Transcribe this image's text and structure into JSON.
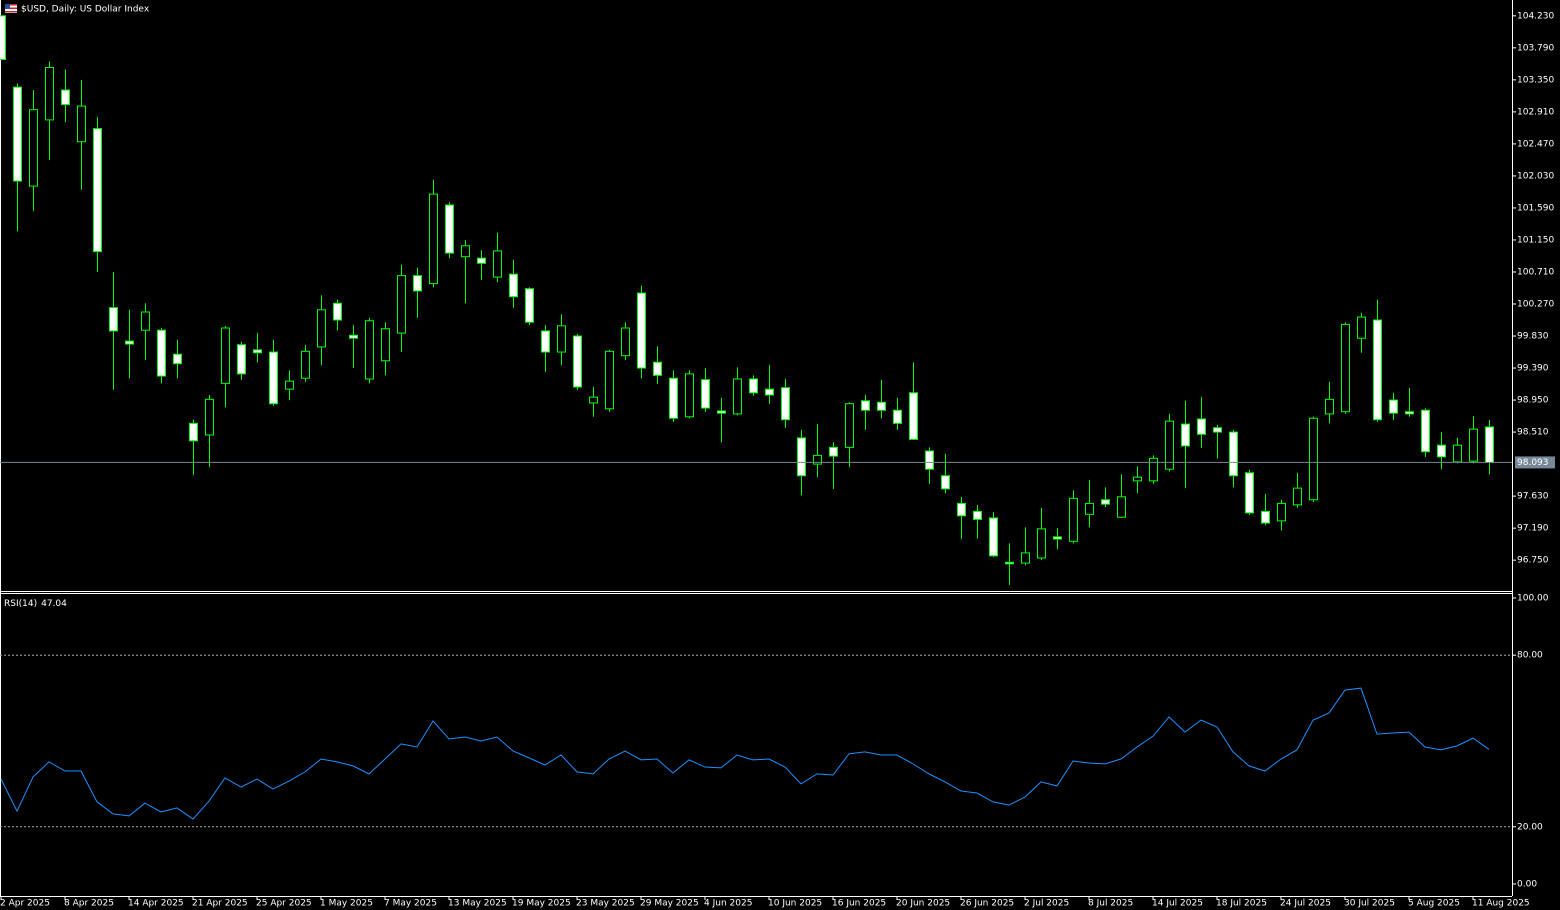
{
  "chart_data": [
    {
      "type": "candlestick",
      "title": "$USD, Daily:  US Dollar Index",
      "categories": [
        "2 Apr 2025",
        null,
        null,
        null,
        "8 Apr 2025",
        null,
        null,
        null,
        "14 Apr 2025",
        null,
        null,
        null,
        "21 Apr 2025",
        null,
        null,
        null,
        "25 Apr 2025",
        null,
        null,
        null,
        "1 May 2025",
        null,
        null,
        null,
        "7 May 2025",
        null,
        null,
        null,
        "13 May 2025",
        null,
        null,
        null,
        "19 May 2025",
        null,
        null,
        null,
        "23 May 2025",
        null,
        null,
        null,
        "29 May 2025",
        null,
        null,
        null,
        "4 Jun 2025",
        null,
        null,
        null,
        "10 Jun 2025",
        null,
        null,
        null,
        "16 Jun 2025",
        null,
        null,
        null,
        "20 Jun 2025",
        null,
        null,
        null,
        "26 Jun 2025",
        null,
        null,
        null,
        "2 Jul 2025",
        null,
        null,
        null,
        "8 Jul 2025",
        null,
        null,
        null,
        "14 Jul 2025",
        null,
        null,
        null,
        "18 Jul 2025",
        null,
        null,
        null,
        "24 Jul 2025",
        null,
        null,
        null,
        "30 Jul 2025",
        null,
        null,
        null,
        "5 Aug 2025",
        null,
        null,
        null,
        "11 Aug 2025",
        null
      ],
      "open": [
        104.23,
        103.25,
        101.89,
        102.8,
        103.21,
        102.5,
        102.68,
        100.22,
        99.76,
        99.91,
        99.91,
        99.58,
        98.63,
        98.47,
        99.18,
        99.71,
        99.64,
        99.61,
        99.1,
        99.25,
        99.68,
        100.28,
        99.84,
        99.24,
        99.49,
        99.87,
        100.66,
        100.55,
        101.63,
        100.92,
        100.9,
        100.64,
        100.68,
        100.48,
        99.9,
        99.61,
        99.83,
        98.91,
        98.83,
        99.56,
        100.42,
        99.47,
        99.25,
        98.72,
        99.23,
        98.8,
        98.76,
        99.24,
        99.1,
        99.12,
        98.43,
        98.07,
        98.3,
        98.3,
        98.94,
        98.92,
        98.81,
        99.05,
        98.25,
        97.91,
        97.53,
        97.42,
        97.33,
        96.72,
        96.71,
        96.78,
        97.07,
        97.01,
        97.38,
        97.58,
        97.34,
        97.84,
        97.84,
        98.0,
        98.62,
        98.69,
        98.57,
        98.51,
        97.95,
        97.42,
        97.29,
        97.51,
        97.58,
        98.76,
        98.79,
        99.8,
        100.05,
        98.95,
        98.79,
        98.81,
        98.33,
        98.1,
        98.11,
        98.58
      ],
      "high": [
        104.23,
        103.3,
        103.21,
        103.6,
        103.49,
        103.35,
        102.84,
        100.71,
        100.19,
        100.28,
        99.94,
        99.78,
        98.68,
        99.02,
        99.97,
        99.75,
        99.87,
        99.78,
        99.36,
        99.71,
        100.39,
        100.33,
        99.98,
        100.08,
        100.02,
        100.81,
        100.77,
        101.98,
        101.67,
        101.15,
        101.01,
        101.25,
        100.88,
        100.5,
        99.98,
        100.13,
        99.86,
        99.13,
        99.64,
        100.02,
        100.52,
        99.69,
        99.36,
        99.36,
        99.39,
        98.98,
        99.4,
        99.29,
        99.43,
        99.24,
        98.54,
        98.62,
        98.37,
        98.92,
        99.02,
        99.23,
        98.98,
        99.47,
        98.3,
        98.21,
        97.62,
        97.51,
        97.41,
        96.98,
        97.2,
        97.47,
        97.19,
        97.71,
        97.85,
        97.75,
        97.93,
        98.04,
        98.19,
        98.76,
        98.94,
        98.99,
        98.61,
        98.54,
        97.99,
        97.66,
        97.58,
        97.95,
        98.72,
        99.2,
        100.02,
        100.15,
        100.33,
        99.05,
        99.12,
        98.84,
        98.51,
        98.43,
        98.73,
        98.68
      ],
      "low": [
        103.63,
        101.27,
        101.55,
        102.25,
        102.77,
        101.84,
        100.71,
        99.09,
        99.25,
        99.5,
        99.18,
        99.25,
        97.92,
        98.03,
        98.85,
        99.23,
        99.47,
        98.87,
        98.95,
        99.2,
        99.43,
        99.91,
        99.39,
        99.18,
        99.29,
        99.61,
        100.08,
        100.5,
        100.9,
        100.28,
        100.6,
        100.57,
        100.22,
        99.98,
        99.34,
        99.43,
        99.09,
        98.72,
        98.79,
        99.5,
        99.25,
        99.17,
        98.65,
        98.7,
        98.79,
        98.37,
        98.74,
        99.01,
        98.9,
        98.57,
        97.64,
        97.89,
        97.73,
        98.03,
        98.54,
        98.7,
        98.54,
        98.4,
        97.8,
        97.67,
        97.04,
        97.05,
        96.79,
        96.41,
        96.68,
        96.75,
        96.9,
        96.98,
        97.2,
        97.48,
        97.33,
        97.67,
        97.8,
        97.97,
        97.74,
        98.29,
        98.15,
        97.75,
        97.37,
        97.23,
        97.16,
        97.47,
        97.55,
        98.63,
        98.76,
        99.6,
        98.65,
        98.68,
        98.72,
        98.17,
        98.0,
        98.08,
        98.08,
        97.93
      ],
      "close": [
        103.63,
        101.96,
        102.94,
        103.52,
        103.01,
        102.99,
        100.99,
        99.9,
        99.72,
        100.16,
        99.28,
        99.45,
        98.39,
        98.96,
        99.94,
        99.31,
        99.6,
        98.9,
        99.21,
        99.62,
        100.19,
        100.05,
        99.8,
        100.04,
        99.93,
        100.66,
        100.45,
        101.78,
        100.97,
        101.07,
        100.83,
        101.0,
        100.37,
        100.02,
        99.61,
        99.97,
        99.13,
        98.99,
        99.62,
        99.94,
        99.39,
        99.29,
        98.7,
        99.31,
        98.84,
        98.77,
        99.24,
        99.05,
        99.02,
        98.68,
        97.91,
        98.19,
        98.18,
        98.9,
        98.81,
        98.81,
        98.63,
        98.41,
        98.0,
        97.73,
        97.36,
        97.31,
        96.81,
        96.7,
        96.85,
        97.18,
        97.04,
        97.6,
        97.53,
        97.52,
        97.62,
        97.89,
        98.15,
        98.66,
        98.32,
        98.48,
        98.51,
        97.91,
        97.4,
        97.26,
        97.53,
        97.74,
        98.7,
        98.96,
        99.99,
        100.09,
        98.68,
        98.77,
        98.76,
        98.24,
        98.17,
        98.33,
        98.55,
        98.093
      ],
      "ylim": [
        96.34,
        104.42
      ],
      "yticks": [
        {
          "value": 104.23,
          "label": "104.230"
        },
        {
          "value": 103.79,
          "label": "103.790"
        },
        {
          "value": 103.35,
          "label": "103.350"
        },
        {
          "value": 102.91,
          "label": "102.910"
        },
        {
          "value": 102.47,
          "label": "102.470"
        },
        {
          "value": 102.03,
          "label": "102.030"
        },
        {
          "value": 101.59,
          "label": "101.590"
        },
        {
          "value": 101.15,
          "label": "101.150"
        },
        {
          "value": 100.71,
          "label": "100.710"
        },
        {
          "value": 100.27,
          "label": "100.270"
        },
        {
          "value": 99.83,
          "label": "99.830"
        },
        {
          "value": 99.39,
          "label": "99.390"
        },
        {
          "value": 98.95,
          "label": "98.950"
        },
        {
          "value": 98.51,
          "label": "98.510"
        },
        {
          "value": 97.63,
          "label": "97.630"
        },
        {
          "value": 97.19,
          "label": "97.190"
        },
        {
          "value": 96.75,
          "label": "96.750"
        }
      ],
      "color_up": "#000000",
      "color_down": "#ffffff",
      "wick_color": "#00ff00",
      "price_line_color": "#778899"
    },
    {
      "type": "line",
      "title": "RSI(14)",
      "values": [
        36.7,
        25.5,
        37.4,
        42.7,
        39.5,
        39.5,
        28.7,
        24.5,
        23.8,
        28.3,
        25.2,
        26.6,
        22.7,
        29.0,
        37.1,
        33.9,
        36.7,
        33.2,
        36.0,
        39.2,
        43.7,
        42.7,
        41.3,
        38.5,
        43.7,
        49.0,
        47.9,
        57.0,
        50.7,
        51.4,
        50.0,
        51.4,
        46.5,
        44.1,
        41.6,
        45.1,
        39.2,
        38.5,
        43.7,
        46.5,
        43.4,
        43.7,
        38.8,
        43.4,
        40.9,
        40.6,
        45.1,
        43.4,
        43.7,
        40.9,
        35.0,
        38.5,
        38.1,
        45.5,
        46.2,
        45.1,
        45.1,
        42.0,
        38.5,
        35.7,
        32.5,
        31.8,
        28.7,
        27.6,
        30.4,
        35.7,
        34.3,
        43.0,
        42.3,
        42.0,
        43.7,
        47.9,
        51.7,
        58.4,
        53.1,
        57.3,
        54.9,
        46.2,
        41.3,
        39.5,
        43.7,
        46.9,
        57.3,
        59.8,
        67.8,
        68.5,
        52.4,
        52.8,
        53.1,
        47.9,
        46.9,
        48.3,
        51.0,
        47.04
      ],
      "color": "#1e90ff",
      "ylim": [
        -4.2,
        101.4
      ],
      "yticks": [
        {
          "value": 100,
          "label": "100.00"
        },
        {
          "value": 80,
          "label": "80.00"
        },
        {
          "value": 20,
          "label": "20.00"
        },
        {
          "value": 0,
          "label": "0.00"
        }
      ],
      "levels": [
        80,
        20
      ]
    }
  ]
}
